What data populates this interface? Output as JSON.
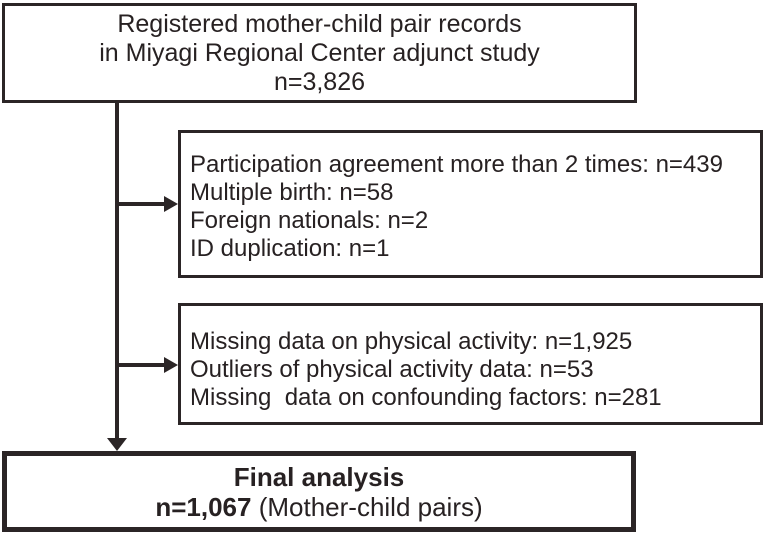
{
  "flowchart": {
    "ink_color": "#2b2526",
    "background_color": "#ffffff",
    "top_box": {
      "lines": [
        "Registered mother-child pair records",
        "in Miyagi Regional Center adjunct study",
        "n=3,826"
      ]
    },
    "exclusion_box_1": {
      "lines": [
        "Participation agreement more than 2 times: n=439",
        "Multiple birth: n=58",
        "Foreign nationals: n=2",
        "ID duplication: n=1"
      ]
    },
    "exclusion_box_2": {
      "lines": [
        "Missing data on physical activity: n=1,925",
        "Outliers of physical activity data: n=53",
        "Missing  data on confounding factors: n=281"
      ]
    },
    "final_box": {
      "title": "Final analysis",
      "n_value": "n=1,067",
      "n_suffix": " (Mother-child pairs)"
    }
  }
}
